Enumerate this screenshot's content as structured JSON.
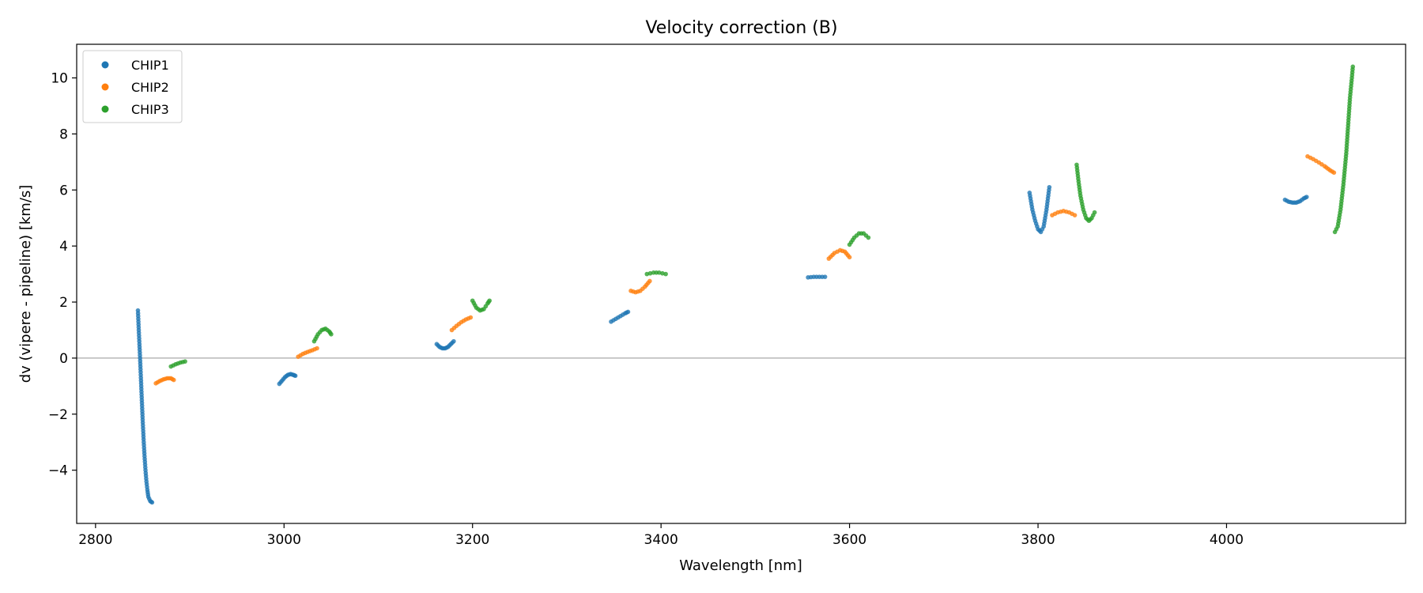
{
  "chart_data": {
    "type": "scatter",
    "title": "Velocity correction (B)",
    "xlabel": "Wavelength [nm]",
    "ylabel": "dv (vipere - pipeline) [km/s]",
    "xlim": [
      2780,
      4190
    ],
    "ylim": [
      -5.9,
      11.2
    ],
    "xticks": [
      2800,
      3000,
      3200,
      3400,
      3600,
      3800,
      4000
    ],
    "yticks": [
      -4,
      -2,
      0,
      2,
      4,
      6,
      8,
      10
    ],
    "zero_line": 0,
    "legend_position": "upper-left",
    "series": [
      {
        "name": "CHIP1",
        "color": "#1f77b4",
        "segments": [
          [
            [
              2845,
              1.7
            ],
            [
              2846,
              0.9
            ],
            [
              2847,
              0.2
            ],
            [
              2848,
              -0.6
            ],
            [
              2849,
              -1.4
            ],
            [
              2850,
              -2.2
            ],
            [
              2851,
              -2.9
            ],
            [
              2852,
              -3.5
            ],
            [
              2853,
              -4.0
            ],
            [
              2854,
              -4.4
            ],
            [
              2855,
              -4.7
            ],
            [
              2856,
              -4.95
            ],
            [
              2858,
              -5.1
            ],
            [
              2860,
              -5.15
            ]
          ],
          [
            [
              2995,
              -0.92
            ],
            [
              2998,
              -0.8
            ],
            [
              3001,
              -0.68
            ],
            [
              3004,
              -0.6
            ],
            [
              3007,
              -0.57
            ],
            [
              3010,
              -0.6
            ],
            [
              3012,
              -0.63
            ]
          ],
          [
            [
              3162,
              0.5
            ],
            [
              3165,
              0.4
            ],
            [
              3168,
              0.35
            ],
            [
              3171,
              0.35
            ],
            [
              3174,
              0.4
            ],
            [
              3177,
              0.5
            ],
            [
              3180,
              0.6
            ]
          ],
          [
            [
              3347,
              1.3
            ],
            [
              3352,
              1.4
            ],
            [
              3357,
              1.5
            ],
            [
              3362,
              1.6
            ],
            [
              3365,
              1.65
            ]
          ],
          [
            [
              3556,
              2.88
            ],
            [
              3562,
              2.9
            ],
            [
              3568,
              2.9
            ],
            [
              3574,
              2.9
            ]
          ],
          [
            [
              3791,
              5.9
            ],
            [
              3794,
              5.3
            ],
            [
              3797,
              4.9
            ],
            [
              3800,
              4.6
            ],
            [
              3803,
              4.5
            ],
            [
              3806,
              4.7
            ],
            [
              3809,
              5.3
            ],
            [
              3812,
              6.1
            ]
          ],
          [
            [
              4062,
              5.65
            ],
            [
              4066,
              5.58
            ],
            [
              4070,
              5.55
            ],
            [
              4074,
              5.55
            ],
            [
              4078,
              5.6
            ],
            [
              4082,
              5.7
            ],
            [
              4085,
              5.75
            ]
          ]
        ]
      },
      {
        "name": "CHIP2",
        "color": "#ff7f0e",
        "segments": [
          [
            [
              2864,
              -0.9
            ],
            [
              2868,
              -0.82
            ],
            [
              2872,
              -0.76
            ],
            [
              2876,
              -0.72
            ],
            [
              2880,
              -0.72
            ],
            [
              2883,
              -0.78
            ]
          ],
          [
            [
              3015,
              0.05
            ],
            [
              3020,
              0.15
            ],
            [
              3025,
              0.22
            ],
            [
              3030,
              0.28
            ],
            [
              3035,
              0.35
            ]
          ],
          [
            [
              3178,
              1.0
            ],
            [
              3183,
              1.15
            ],
            [
              3188,
              1.28
            ],
            [
              3193,
              1.38
            ],
            [
              3198,
              1.45
            ]
          ],
          [
            [
              3368,
              2.4
            ],
            [
              3373,
              2.35
            ],
            [
              3378,
              2.4
            ],
            [
              3383,
              2.55
            ],
            [
              3388,
              2.75
            ]
          ],
          [
            [
              3578,
              3.55
            ],
            [
              3584,
              3.75
            ],
            [
              3590,
              3.85
            ],
            [
              3595,
              3.8
            ],
            [
              3600,
              3.6
            ]
          ],
          [
            [
              3815,
              5.1
            ],
            [
              3821,
              5.2
            ],
            [
              3827,
              5.25
            ],
            [
              3833,
              5.2
            ],
            [
              3839,
              5.1
            ]
          ],
          [
            [
              4086,
              7.2
            ],
            [
              4092,
              7.1
            ],
            [
              4098,
              6.98
            ],
            [
              4104,
              6.85
            ],
            [
              4110,
              6.7
            ],
            [
              4114,
              6.62
            ]
          ]
        ]
      },
      {
        "name": "CHIP3",
        "color": "#2ca02c",
        "segments": [
          [
            [
              2880,
              -0.3
            ],
            [
              2885,
              -0.22
            ],
            [
              2890,
              -0.16
            ],
            [
              2895,
              -0.12
            ]
          ],
          [
            [
              3032,
              0.6
            ],
            [
              3036,
              0.85
            ],
            [
              3040,
              1.0
            ],
            [
              3044,
              1.05
            ],
            [
              3048,
              0.95
            ],
            [
              3050,
              0.85
            ]
          ],
          [
            [
              3200,
              2.05
            ],
            [
              3204,
              1.8
            ],
            [
              3208,
              1.7
            ],
            [
              3212,
              1.75
            ],
            [
              3216,
              1.95
            ],
            [
              3218,
              2.05
            ]
          ],
          [
            [
              3385,
              3.0
            ],
            [
              3392,
              3.05
            ],
            [
              3398,
              3.05
            ],
            [
              3405,
              3.0
            ]
          ],
          [
            [
              3600,
              4.05
            ],
            [
              3605,
              4.3
            ],
            [
              3610,
              4.45
            ],
            [
              3615,
              4.45
            ],
            [
              3620,
              4.3
            ]
          ],
          [
            [
              3841,
              6.9
            ],
            [
              3843,
              6.3
            ],
            [
              3845,
              5.8
            ],
            [
              3848,
              5.3
            ],
            [
              3851,
              5.0
            ],
            [
              3854,
              4.9
            ],
            [
              3857,
              5.0
            ],
            [
              3860,
              5.2
            ]
          ],
          [
            [
              4115,
              4.5
            ],
            [
              4118,
              4.7
            ],
            [
              4121,
              5.3
            ],
            [
              4124,
              6.2
            ],
            [
              4127,
              7.3
            ],
            [
              4129,
              8.3
            ],
            [
              4131,
              9.3
            ],
            [
              4133,
              10.0
            ],
            [
              4134,
              10.4
            ]
          ]
        ]
      }
    ]
  }
}
